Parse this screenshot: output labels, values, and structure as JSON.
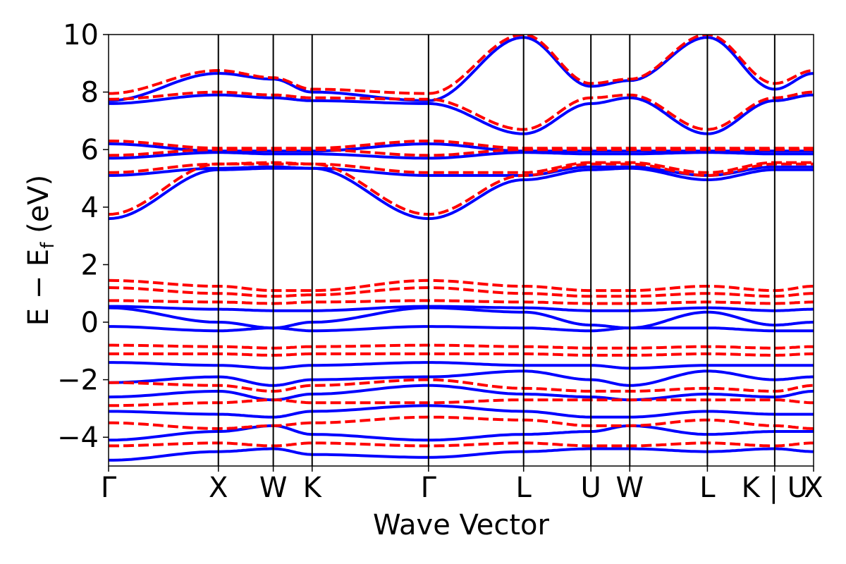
{
  "chart_data": {
    "type": "line",
    "title": "",
    "xlabel": "Wave Vector",
    "ylabel": "E − E",
    "ylabel_subscript": "f",
    "ylabel_unit": "(eV)",
    "ylim": [
      -5,
      10
    ],
    "yticks": [
      -4,
      -2,
      0,
      2,
      4,
      6,
      8,
      10
    ],
    "ytick_labels": [
      "−4",
      "−2",
      "0",
      "2",
      "4",
      "6",
      "8",
      "10"
    ],
    "grid": false,
    "legend": "none",
    "kpoints": [
      {
        "label": "Γ",
        "x": 0.0
      },
      {
        "label": "X",
        "x": 1.0
      },
      {
        "label": "W",
        "x": 1.5
      },
      {
        "label": "K",
        "x": 1.854
      },
      {
        "label": "Γ",
        "x": 2.914
      },
      {
        "label": "L",
        "x": 3.78
      },
      {
        "label": "U",
        "x": 4.393
      },
      {
        "label": "W",
        "x": 4.747
      },
      {
        "label": "L",
        "x": 5.454
      },
      {
        "label": "K | U",
        "x": 6.067
      },
      {
        "label": "X",
        "x": 6.421
      }
    ],
    "series": [
      {
        "style": "solid",
        "color": "#0000ff",
        "bands": [
          [
            3.6,
            5.3,
            5.35,
            5.35,
            3.6,
            4.95,
            5.3,
            5.35,
            4.95,
            5.3,
            5.3
          ],
          [
            5.1,
            5.35,
            5.4,
            5.35,
            5.1,
            5.1,
            5.4,
            5.4,
            5.1,
            5.4,
            5.4
          ],
          [
            5.7,
            5.9,
            5.85,
            5.85,
            5.7,
            5.9,
            5.85,
            5.85,
            5.9,
            5.85,
            5.85
          ],
          [
            6.2,
            5.95,
            5.95,
            5.95,
            6.2,
            5.95,
            5.95,
            5.95,
            5.95,
            5.95,
            5.95
          ],
          [
            7.6,
            7.9,
            7.8,
            7.7,
            7.6,
            6.55,
            7.6,
            7.8,
            6.55,
            7.7,
            7.9
          ],
          [
            7.7,
            8.65,
            8.45,
            8.0,
            7.7,
            9.9,
            8.2,
            8.4,
            9.9,
            8.1,
            8.65
          ],
          [
            0.55,
            0.45,
            0.4,
            0.4,
            0.55,
            0.5,
            0.4,
            0.4,
            0.5,
            0.4,
            0.45
          ],
          [
            0.5,
            0.0,
            -0.2,
            0.0,
            0.5,
            0.35,
            -0.1,
            -0.2,
            0.35,
            -0.1,
            0.0
          ],
          [
            -0.15,
            -0.3,
            -0.2,
            -0.3,
            -0.15,
            -0.2,
            -0.3,
            -0.2,
            -0.2,
            -0.3,
            -0.3
          ],
          [
            -1.4,
            -1.5,
            -1.6,
            -1.5,
            -1.4,
            -1.5,
            -1.5,
            -1.6,
            -1.5,
            -1.5,
            -1.5
          ],
          [
            -2.1,
            -1.9,
            -2.2,
            -2.0,
            -1.9,
            -1.7,
            -2.0,
            -2.2,
            -1.7,
            -2.0,
            -1.9
          ],
          [
            -2.6,
            -2.4,
            -2.7,
            -2.5,
            -2.2,
            -2.5,
            -2.6,
            -2.7,
            -2.5,
            -2.6,
            -2.4
          ],
          [
            -3.1,
            -3.2,
            -3.3,
            -3.1,
            -2.9,
            -3.1,
            -3.3,
            -3.3,
            -3.1,
            -3.2,
            -3.2
          ],
          [
            -4.1,
            -3.8,
            -3.6,
            -3.9,
            -4.1,
            -3.9,
            -3.8,
            -3.6,
            -3.9,
            -3.8,
            -3.8
          ],
          [
            -4.8,
            -4.5,
            -4.4,
            -4.6,
            -4.7,
            -4.5,
            -4.4,
            -4.4,
            -4.5,
            -4.4,
            -4.5
          ]
        ]
      },
      {
        "style": "dashed",
        "color": "#ff0000",
        "bands": [
          [
            3.75,
            5.5,
            5.5,
            5.5,
            3.75,
            5.1,
            5.5,
            5.5,
            5.1,
            5.5,
            5.5
          ],
          [
            5.2,
            5.5,
            5.55,
            5.5,
            5.2,
            5.2,
            5.55,
            5.55,
            5.2,
            5.55,
            5.55
          ],
          [
            5.8,
            6.0,
            6.0,
            6.0,
            5.8,
            6.0,
            6.0,
            6.0,
            6.0,
            6.0,
            6.0
          ],
          [
            6.3,
            6.05,
            6.05,
            6.05,
            6.3,
            6.05,
            6.05,
            6.05,
            6.05,
            6.05,
            6.05
          ],
          [
            7.75,
            8.0,
            7.9,
            7.8,
            7.75,
            6.7,
            7.8,
            7.9,
            6.7,
            7.8,
            8.0
          ],
          [
            7.95,
            8.75,
            8.5,
            8.1,
            7.95,
            10.0,
            8.3,
            8.45,
            10.0,
            8.3,
            8.75
          ],
          [
            1.45,
            1.25,
            1.1,
            1.1,
            1.45,
            1.25,
            1.1,
            1.1,
            1.25,
            1.1,
            1.25
          ],
          [
            1.2,
            1.0,
            0.9,
            0.95,
            1.2,
            1.0,
            0.9,
            0.9,
            1.0,
            0.9,
            1.0
          ],
          [
            0.75,
            0.7,
            0.65,
            0.7,
            0.75,
            0.7,
            0.65,
            0.65,
            0.7,
            0.65,
            0.7
          ],
          [
            -0.8,
            -0.85,
            -0.9,
            -0.85,
            -0.8,
            -0.85,
            -0.9,
            -0.9,
            -0.85,
            -0.9,
            -0.85
          ],
          [
            -1.1,
            -1.1,
            -1.15,
            -1.1,
            -1.1,
            -1.1,
            -1.15,
            -1.15,
            -1.1,
            -1.15,
            -1.1
          ],
          [
            -2.1,
            -2.2,
            -2.4,
            -2.2,
            -2.0,
            -2.3,
            -2.4,
            -2.4,
            -2.3,
            -2.4,
            -2.2
          ],
          [
            -2.9,
            -2.8,
            -2.7,
            -2.8,
            -2.8,
            -2.7,
            -2.7,
            -2.7,
            -2.7,
            -2.7,
            -2.8
          ],
          [
            -3.5,
            -3.7,
            -3.6,
            -3.5,
            -3.3,
            -3.4,
            -3.6,
            -3.6,
            -3.4,
            -3.6,
            -3.7
          ],
          [
            -4.3,
            -4.2,
            -4.3,
            -4.2,
            -4.3,
            -4.2,
            -4.3,
            -4.3,
            -4.2,
            -4.3,
            -4.2
          ]
        ]
      }
    ]
  }
}
